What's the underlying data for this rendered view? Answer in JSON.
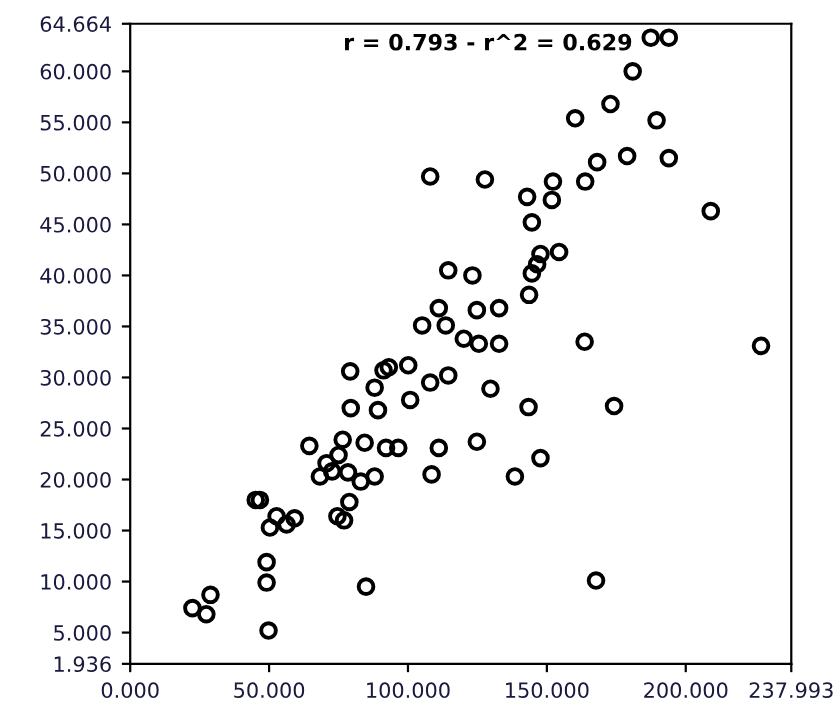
{
  "chart_data": {
    "type": "scatter",
    "marker": "circle",
    "grid": false,
    "legend": false,
    "annotations": [
      "r = 0.793 - r^2 = 0.629"
    ],
    "xlim": [
      0,
      237.993
    ],
    "ylim": [
      1.936,
      64.664
    ],
    "xticks": [
      {
        "value": 0,
        "label": "0.000"
      },
      {
        "value": 50,
        "label": "50.000"
      },
      {
        "value": 100,
        "label": "100.000"
      },
      {
        "value": 150,
        "label": "150.000"
      },
      {
        "value": 200,
        "label": "200.000"
      },
      {
        "value": 237.993,
        "label": "237.993"
      }
    ],
    "yticks": [
      {
        "value": 1.936,
        "label": "1.936"
      },
      {
        "value": 5,
        "label": "5.000"
      },
      {
        "value": 10,
        "label": "10.000"
      },
      {
        "value": 15,
        "label": "15.000"
      },
      {
        "value": 20,
        "label": "20.000"
      },
      {
        "value": 25,
        "label": "25.000"
      },
      {
        "value": 30,
        "label": "30.000"
      },
      {
        "value": 35,
        "label": "35.000"
      },
      {
        "value": 40,
        "label": "40.000"
      },
      {
        "value": 45,
        "label": "45.000"
      },
      {
        "value": 50,
        "label": "50.000"
      },
      {
        "value": 55,
        "label": "55.000"
      },
      {
        "value": 60,
        "label": "60.000"
      },
      {
        "value": 64.664,
        "label": "64.664"
      }
    ],
    "series": [
      {
        "color": "#000000",
        "x": [
          22.4,
          27.4,
          28.9,
          49.8,
          49.1,
          49.1,
          84.9,
          45.2,
          46.7,
          50.3,
          52.7,
          56.3,
          59.2,
          64.5,
          68.3,
          70.7,
          72.7,
          75.0,
          74.6,
          77.0,
          76.5,
          78.4,
          78.9,
          79.4,
          79.2,
          83.0,
          84.4,
          88.0,
          88.0,
          89.2,
          92.1,
          96.5,
          91.2,
          93.1,
          100.1,
          100.8,
          108.0,
          114.5,
          129.7,
          111.1,
          108.5,
          124.8,
          143.4,
          138.5,
          147.7,
          174.2,
          167.7,
          227.1,
          163.6,
          187.4,
          193.9,
          180.9,
          160.2,
          172.9,
          189.5,
          108.0,
          127.7,
          168.1,
          178.9,
          193.9,
          152.2,
          163.8,
          142.9,
          151.8,
          144.6,
          209.0,
          154.4,
          147.7,
          146.5,
          144.6,
          114.5,
          123.2,
          143.6,
          111.1,
          124.8,
          132.8,
          105.1,
          113.6,
          120.1,
          125.5,
          132.8
        ],
        "values": [
          7.4,
          6.8,
          8.7,
          5.2,
          9.9,
          11.9,
          9.5,
          18.0,
          18.0,
          15.3,
          16.4,
          15.6,
          16.2,
          23.3,
          20.3,
          21.6,
          20.8,
          22.4,
          16.4,
          16.0,
          23.9,
          20.7,
          17.8,
          27.0,
          30.6,
          19.8,
          23.6,
          20.3,
          29.0,
          26.8,
          23.1,
          23.1,
          30.7,
          31.0,
          31.2,
          27.8,
          29.5,
          30.2,
          28.9,
          23.1,
          20.5,
          23.7,
          27.1,
          20.3,
          22.1,
          27.2,
          10.1,
          33.1,
          33.5,
          63.3,
          63.3,
          60.0,
          55.4,
          56.8,
          55.2,
          49.7,
          49.4,
          51.1,
          51.7,
          51.5,
          49.2,
          49.2,
          47.7,
          47.4,
          45.2,
          46.3,
          42.3,
          42.1,
          41.1,
          40.2,
          40.5,
          40.0,
          38.1,
          36.8,
          36.6,
          36.8,
          35.1,
          35.1,
          33.8,
          33.3,
          33.3
        ]
      }
    ]
  }
}
